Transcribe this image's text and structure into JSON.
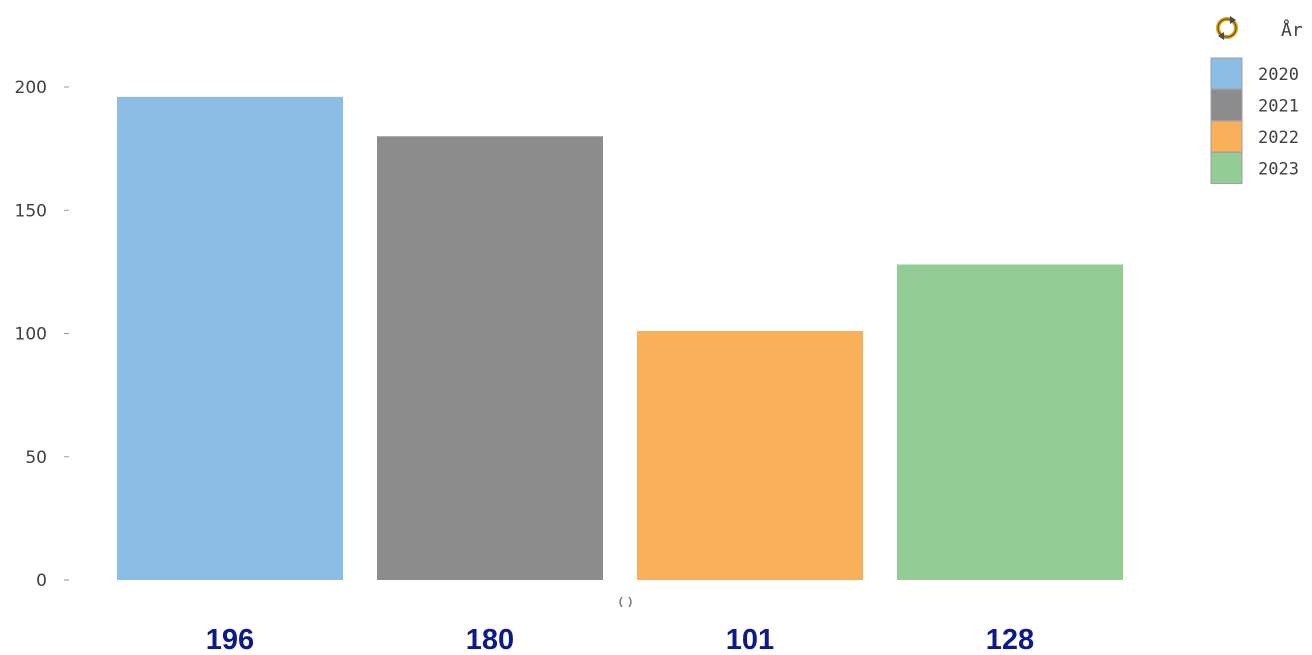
{
  "chart_data": {
    "type": "bar",
    "categories": [
      "2020",
      "2021",
      "2022",
      "2023"
    ],
    "values": [
      196,
      180,
      101,
      128
    ],
    "colors": [
      "#8bbde5",
      "#8c8c8c",
      "#fab05a",
      "#93cd95"
    ],
    "ylim": [
      0,
      200
    ],
    "yticks": [
      0,
      50,
      100,
      150,
      200
    ],
    "value_labels": [
      "196",
      "180",
      "101",
      "128"
    ],
    "legend": {
      "title": "År",
      "icon": "refresh-icon",
      "placement": "top-right",
      "entries": [
        "2020",
        "2021",
        "2022",
        "2023"
      ]
    },
    "grid": false
  }
}
